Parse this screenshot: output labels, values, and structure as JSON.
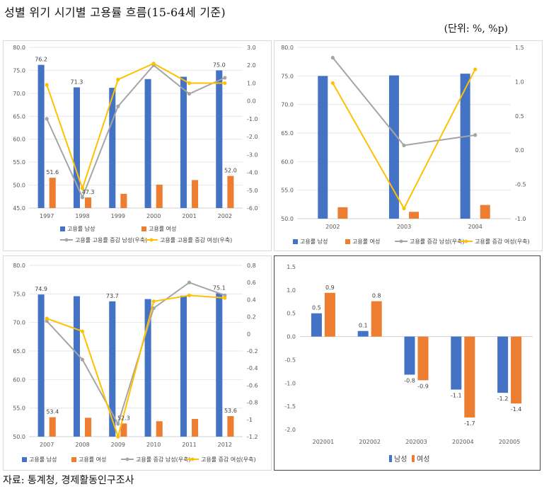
{
  "title": "성별 위기 시기별 고용률 흐름(15-64세 기준)",
  "unit": "(단위: %, %p)",
  "source": "자료: 통계청, 경제활동인구조사",
  "colors": {
    "male": "#4472c4",
    "female": "#ed7d31",
    "male_line": "#a5a5a5",
    "female_line": "#ffc000",
    "grid": "#e6e6e6",
    "axis_text": "#595959"
  },
  "chart_data": [
    {
      "type": "bar",
      "id": "c1",
      "categories": [
        "1997",
        "1998",
        "1999",
        "2000",
        "2001",
        "2002"
      ],
      "series": [
        {
          "name": "고용률 남성",
          "kind": "bar",
          "axis": "left",
          "values": [
            76.2,
            71.3,
            71.2,
            73.1,
            73.6,
            75.0
          ]
        },
        {
          "name": "고용률 여성",
          "kind": "bar",
          "axis": "left",
          "values": [
            51.6,
            47.3,
            48.1,
            50.1,
            51.1,
            52.0
          ]
        },
        {
          "name": "고용률 고용률 증감 남성(우축)",
          "kind": "line",
          "axis": "right",
          "values": [
            -1.0,
            -5.4,
            -0.3,
            2.0,
            0.4,
            1.3
          ]
        },
        {
          "name": "고용률 고용률 증감 여성(우축)",
          "kind": "line",
          "axis": "right",
          "values": [
            0.9,
            -4.9,
            1.2,
            2.1,
            1.0,
            1.0
          ]
        }
      ],
      "data_labels": [
        {
          "series": 0,
          "index": 0,
          "text": "76.2"
        },
        {
          "series": 0,
          "index": 1,
          "text": "71.3"
        },
        {
          "series": 0,
          "index": 5,
          "text": "75.0"
        },
        {
          "series": 1,
          "index": 0,
          "text": "51.6"
        },
        {
          "series": 1,
          "index": 1,
          "text": "47.3"
        },
        {
          "series": 1,
          "index": 5,
          "text": "52.0"
        }
      ],
      "ylim": [
        45,
        80
      ],
      "yticks": [
        "45.0",
        "50.0",
        "55.0",
        "60.0",
        "65.0",
        "70.0",
        "75.0",
        "80.0"
      ],
      "y2lim": [
        -6,
        3
      ],
      "y2ticks": [
        "-6.0",
        "-5.0",
        "-4.0",
        "-3.0",
        "-2.0",
        "-1.0",
        "0.0",
        "1.0",
        "2.0",
        "3.0"
      ],
      "legend": [
        "고용률 남성",
        "고용률 여성",
        "고용률 고용률 증감 남성(우축)",
        "고용률 고용률 증감 여성(우축)"
      ]
    },
    {
      "type": "bar",
      "id": "c2",
      "categories": [
        "2002",
        "2003",
        "2004"
      ],
      "series": [
        {
          "name": "고용률 남성",
          "kind": "bar",
          "axis": "left",
          "values": [
            75.0,
            75.1,
            75.4
          ]
        },
        {
          "name": "고용률 여성",
          "kind": "bar",
          "axis": "left",
          "values": [
            52.0,
            51.2,
            52.4
          ]
        },
        {
          "name": "고용률 증감 남성(우축)",
          "kind": "line",
          "axis": "right",
          "values": [
            1.35,
            0.07,
            0.22
          ]
        },
        {
          "name": "고용률 증감 여성(우축)",
          "kind": "line",
          "axis": "right",
          "values": [
            0.98,
            -0.85,
            1.18
          ]
        }
      ],
      "data_labels": [],
      "ylim": [
        50,
        80
      ],
      "yticks": [
        "50.0",
        "55.0",
        "60.0",
        "65.0",
        "70.0",
        "75.0",
        "80.0"
      ],
      "y2lim": [
        -1,
        1.5
      ],
      "y2ticks": [
        "-1.0",
        "-0.5",
        "0.0",
        "0.5",
        "1.0",
        "1.5"
      ],
      "legend": [
        "고용률 남성",
        "고용률 여성",
        "고용률 증감 남성(우축)",
        "고용률 증감 여성(우축)"
      ]
    },
    {
      "type": "bar",
      "id": "c3",
      "categories": [
        "2007",
        "2008",
        "2009",
        "2010",
        "2011",
        "2012"
      ],
      "series": [
        {
          "name": "고용률 남성",
          "kind": "bar",
          "axis": "left",
          "values": [
            74.9,
            74.6,
            73.7,
            74.1,
            74.7,
            75.1
          ]
        },
        {
          "name": "고용률 여성",
          "kind": "bar",
          "axis": "left",
          "values": [
            53.4,
            53.3,
            52.3,
            52.7,
            53.1,
            53.6
          ]
        },
        {
          "name": "고용률 증감 남성(우축)",
          "kind": "line",
          "axis": "right",
          "values": [
            0.15,
            -0.3,
            -1.05,
            0.3,
            0.6,
            0.45
          ]
        },
        {
          "name": "고용률 증감 여성(우축)",
          "kind": "line",
          "axis": "right",
          "values": [
            0.18,
            0.03,
            -1.2,
            0.38,
            0.45,
            0.42
          ]
        }
      ],
      "data_labels": [
        {
          "series": 0,
          "index": 0,
          "text": "74.9"
        },
        {
          "series": 0,
          "index": 2,
          "text": "73.7"
        },
        {
          "series": 0,
          "index": 5,
          "text": "75.1"
        },
        {
          "series": 1,
          "index": 0,
          "text": "53.4"
        },
        {
          "series": 1,
          "index": 2,
          "text": "52.3"
        },
        {
          "series": 1,
          "index": 5,
          "text": "53.6"
        }
      ],
      "ylim": [
        50,
        80
      ],
      "yticks": [
        "50.0",
        "55.0",
        "60.0",
        "65.0",
        "70.0",
        "75.0",
        "80.0"
      ],
      "y2lim": [
        -1.2,
        0.8
      ],
      "y2ticks": [
        "-1.2",
        "-1",
        "-0.8",
        "-0.6",
        "-0.4",
        "-0.2",
        "0",
        "0.2",
        "0.4",
        "0.6",
        "0.8"
      ],
      "legend": [
        "고용률 남성",
        "고용률 여성",
        "고용률 증감 남성(우축)",
        "고용률 증감 여성(우축)"
      ]
    },
    {
      "type": "bar",
      "id": "c4",
      "categories": [
        "202001",
        "202002",
        "202003",
        "202004",
        "202005"
      ],
      "series": [
        {
          "name": "남성",
          "kind": "bar",
          "values": [
            0.5,
            0.1,
            -0.8,
            -1.1,
            -1.2
          ]
        },
        {
          "name": "여성",
          "kind": "bar",
          "values": [
            0.9,
            0.8,
            -0.9,
            -1.7,
            -1.4
          ]
        }
      ],
      "bar_heights": [
        [
          0.5,
          0.12,
          -0.82,
          -1.14,
          -1.21
        ],
        [
          0.94,
          0.76,
          -0.94,
          -1.74,
          -1.44
        ]
      ],
      "labels": [
        [
          "0.5",
          "0.1",
          "-0.8",
          "-1.1",
          "-1.2"
        ],
        [
          "0.9",
          "0.8",
          "-0.9",
          "-1.7",
          "-1.4"
        ]
      ],
      "ylim": [
        -2,
        1.5
      ],
      "yticks": [
        "-2.0",
        "-1.5",
        "-1.0",
        "-0.5",
        "0.0",
        "0.5",
        "1.0",
        "1.5"
      ],
      "legend": [
        "남성",
        "여성"
      ]
    }
  ]
}
